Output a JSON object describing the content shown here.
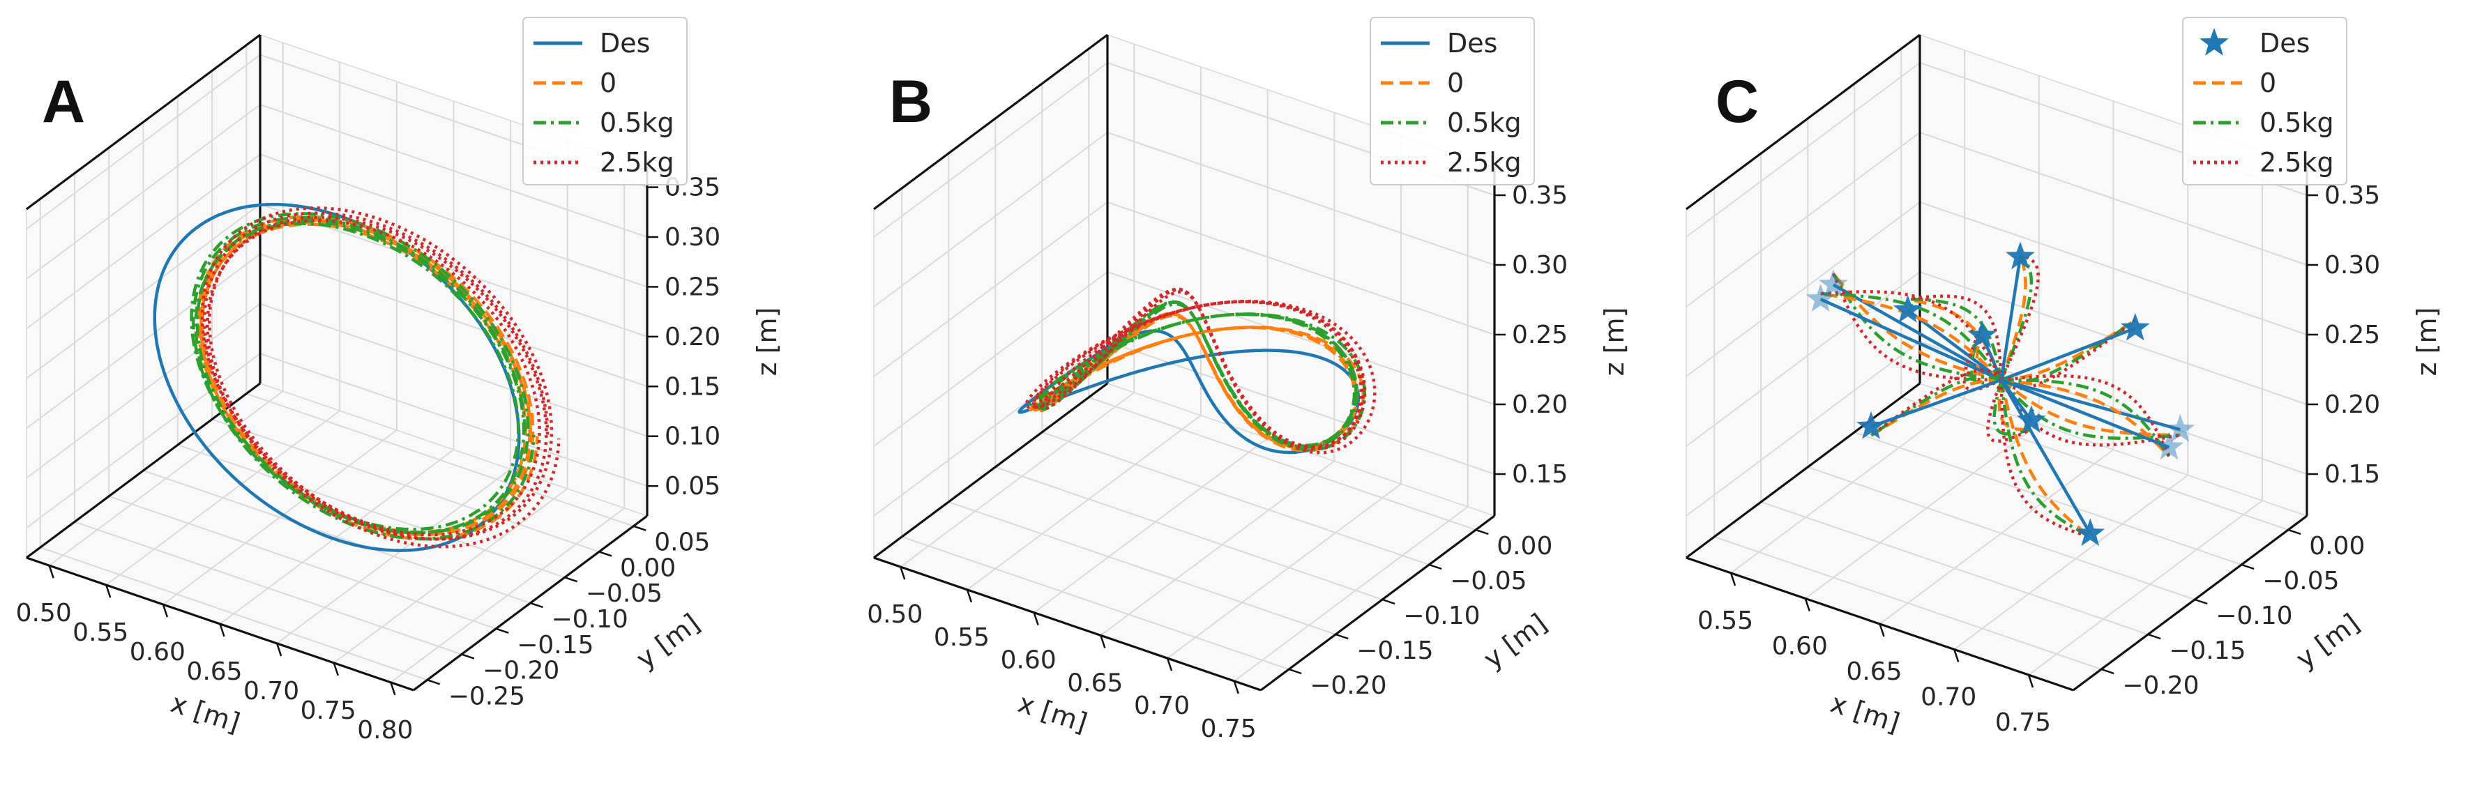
{
  "chart_data": [
    {
      "type": "line3d",
      "panel_label": "A",
      "shape": "circle",
      "xlabel": "x [m]",
      "ylabel": "y [m]",
      "zlabel": "z [m]",
      "xticks": [
        "0.50",
        "0.55",
        "0.60",
        "0.65",
        "0.70",
        "0.75",
        "0.80"
      ],
      "yticks": [
        "−0.25",
        "−0.20",
        "−0.15",
        "−0.10",
        "−0.05",
        "0.00",
        "0.05"
      ],
      "zticks": [
        "0.05",
        "0.10",
        "0.15",
        "0.20",
        "0.25",
        "0.30",
        "0.35"
      ],
      "xlim": [
        0.48,
        0.82
      ],
      "ylim": [
        -0.27,
        0.07
      ],
      "zlim": [
        0.02,
        0.37
      ],
      "legend": [
        "Des",
        "0",
        "0.5kg",
        "2.5kg"
      ],
      "legend_loc": "top-right",
      "series": [
        {
          "name": "Des",
          "style": "solid",
          "color": "#1f77b4",
          "center": [
            0.65,
            -0.1,
            0.18
          ],
          "radius": 0.16,
          "wobble": 0.0
        },
        {
          "name": "0",
          "style": "dashed",
          "color": "#ff7f0e",
          "center": [
            0.675,
            -0.1,
            0.19
          ],
          "radius": 0.145,
          "wobble": 0.006
        },
        {
          "name": "0.5kg",
          "style": "dashdot",
          "color": "#2ca02c",
          "center": [
            0.67,
            -0.1,
            0.19
          ],
          "radius": 0.145,
          "wobble": 0.008
        },
        {
          "name": "2.5kg",
          "style": "dotted",
          "color": "#d62728",
          "center": [
            0.685,
            -0.1,
            0.195
          ],
          "radius": 0.15,
          "wobble": 0.01
        }
      ]
    },
    {
      "type": "line3d",
      "panel_label": "B",
      "shape": "figure8",
      "xlabel": "x [m]",
      "ylabel": "y [m]",
      "zlabel": "z [m]",
      "xticks": [
        "0.50",
        "0.55",
        "0.60",
        "0.65",
        "0.70",
        "0.75"
      ],
      "yticks": [
        "−0.20",
        "−0.15",
        "−0.10",
        "−0.05",
        "0.00"
      ],
      "zticks": [
        "0.15",
        "0.20",
        "0.25",
        "0.30",
        "0.35"
      ],
      "xlim": [
        0.48,
        0.77
      ],
      "ylim": [
        -0.23,
        0.02
      ],
      "zlim": [
        0.12,
        0.37
      ],
      "legend": [
        "Des",
        "0",
        "0.5kg",
        "2.5kg"
      ],
      "legend_loc": "top-right",
      "series": [
        {
          "name": "Des",
          "style": "solid",
          "color": "#1f77b4",
          "center": [
            0.625,
            -0.1,
            0.225
          ],
          "amp": [
            0.11,
            0.085,
            0.02
          ],
          "wobble": 0.0
        },
        {
          "name": "0",
          "style": "dashed",
          "color": "#ff7f0e",
          "center": [
            0.63,
            -0.1,
            0.235
          ],
          "amp": [
            0.105,
            0.08,
            0.03
          ],
          "wobble": 0.005
        },
        {
          "name": "0.5kg",
          "style": "dashdot",
          "color": "#2ca02c",
          "center": [
            0.63,
            -0.1,
            0.24
          ],
          "amp": [
            0.105,
            0.08,
            0.035
          ],
          "wobble": 0.006
        },
        {
          "name": "2.5kg",
          "style": "dotted",
          "color": "#d62728",
          "center": [
            0.632,
            -0.1,
            0.245
          ],
          "amp": [
            0.108,
            0.083,
            0.04
          ],
          "wobble": 0.008
        }
      ]
    },
    {
      "type": "scatter3d",
      "panel_label": "C",
      "shape": "star-burst",
      "xlabel": "x [m]",
      "ylabel": "y [m]",
      "zlabel": "z [m]",
      "xticks": [
        "0.55",
        "0.60",
        "0.65",
        "0.70",
        "0.75"
      ],
      "yticks": [
        "−0.20",
        "−0.15",
        "−0.10",
        "−0.05",
        "0.00"
      ],
      "zticks": [
        "0.15",
        "0.20",
        "0.25",
        "0.30",
        "0.35"
      ],
      "xlim": [
        0.52,
        0.78
      ],
      "ylim": [
        -0.23,
        0.02
      ],
      "zlim": [
        0.12,
        0.37
      ],
      "legend": [
        "Des",
        "0",
        "0.5kg",
        "2.5kg"
      ],
      "legend_loc": "top-right",
      "origin": [
        0.65,
        -0.1,
        0.23
      ],
      "targets": [
        [
          0.6,
          -0.2,
          0.33
        ],
        [
          0.65,
          -0.2,
          0.33
        ],
        [
          0.7,
          -0.2,
          0.33
        ],
        [
          0.56,
          -0.15,
          0.28
        ],
        [
          0.74,
          -0.1,
          0.3
        ],
        [
          0.6,
          0.0,
          0.25
        ],
        [
          0.72,
          -0.02,
          0.18
        ],
        [
          0.55,
          -0.08,
          0.15
        ],
        [
          0.62,
          -0.02,
          0.15
        ],
        [
          0.7,
          0.0,
          0.15
        ],
        [
          0.76,
          -0.18,
          0.2
        ]
      ],
      "series": [
        {
          "name": "Des",
          "style": "star",
          "color": "#1f77b4"
        },
        {
          "name": "0",
          "style": "dashed",
          "color": "#ff7f0e",
          "bend": 0.015
        },
        {
          "name": "0.5kg",
          "style": "dashdot",
          "color": "#2ca02c",
          "bend": 0.022
        },
        {
          "name": "2.5kg",
          "style": "dotted",
          "color": "#d62728",
          "bend": 0.03
        }
      ]
    }
  ]
}
